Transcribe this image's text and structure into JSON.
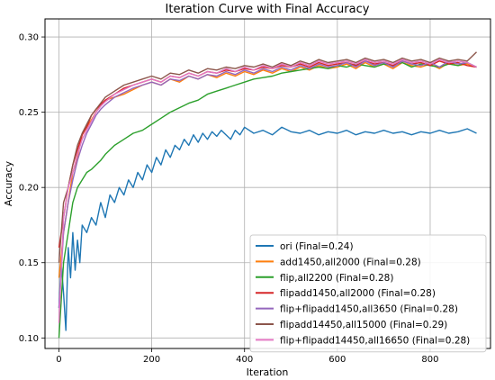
{
  "chart_data": {
    "type": "line",
    "title": "Iteration Curve with Final Accuracy",
    "xlabel": "Iteration",
    "ylabel": "Accuracy",
    "xlim": [
      -30,
      930
    ],
    "ylim": [
      0.093,
      0.312
    ],
    "xticks": [
      0,
      200,
      400,
      600,
      800
    ],
    "yticks": [
      0.1,
      0.15,
      0.2,
      0.25,
      0.3
    ],
    "ytick_labels": [
      "0.10",
      "0.15",
      "0.20",
      "0.25",
      "0.30"
    ],
    "grid": true,
    "legend_position": "lower-right",
    "series": [
      {
        "name": "ori (Final=0.24)",
        "color": "#1f77b4",
        "x": [
          0,
          5,
          10,
          15,
          20,
          25,
          30,
          35,
          40,
          45,
          50,
          60,
          70,
          80,
          90,
          100,
          110,
          120,
          130,
          140,
          150,
          160,
          170,
          180,
          190,
          200,
          210,
          220,
          230,
          240,
          250,
          260,
          270,
          280,
          290,
          300,
          310,
          320,
          330,
          340,
          350,
          360,
          370,
          380,
          390,
          400,
          420,
          440,
          460,
          480,
          500,
          520,
          540,
          560,
          580,
          600,
          620,
          640,
          660,
          680,
          700,
          720,
          740,
          760,
          780,
          800,
          820,
          840,
          860,
          880,
          900
        ],
        "y": [
          0.12,
          0.15,
          0.13,
          0.105,
          0.16,
          0.14,
          0.17,
          0.145,
          0.165,
          0.15,
          0.175,
          0.17,
          0.18,
          0.175,
          0.19,
          0.18,
          0.195,
          0.19,
          0.2,
          0.195,
          0.205,
          0.2,
          0.21,
          0.205,
          0.215,
          0.21,
          0.22,
          0.215,
          0.225,
          0.22,
          0.228,
          0.225,
          0.232,
          0.228,
          0.235,
          0.23,
          0.236,
          0.232,
          0.237,
          0.234,
          0.238,
          0.235,
          0.232,
          0.238,
          0.235,
          0.24,
          0.236,
          0.238,
          0.235,
          0.24,
          0.237,
          0.236,
          0.238,
          0.235,
          0.237,
          0.236,
          0.238,
          0.235,
          0.237,
          0.236,
          0.238,
          0.236,
          0.237,
          0.235,
          0.237,
          0.236,
          0.238,
          0.236,
          0.237,
          0.239,
          0.236
        ]
      },
      {
        "name": "add1450,all2000 (Final=0.28)",
        "color": "#ff7f0e",
        "x": [
          0,
          10,
          20,
          30,
          40,
          50,
          60,
          70,
          80,
          90,
          100,
          120,
          140,
          160,
          180,
          200,
          220,
          240,
          260,
          280,
          300,
          320,
          340,
          360,
          380,
          400,
          420,
          440,
          460,
          480,
          500,
          520,
          540,
          560,
          580,
          600,
          620,
          640,
          660,
          680,
          700,
          720,
          740,
          760,
          780,
          800,
          820,
          840,
          860,
          880,
          900
        ],
        "y": [
          0.14,
          0.17,
          0.19,
          0.21,
          0.22,
          0.235,
          0.24,
          0.245,
          0.25,
          0.255,
          0.258,
          0.26,
          0.262,
          0.265,
          0.268,
          0.27,
          0.268,
          0.272,
          0.27,
          0.274,
          0.272,
          0.275,
          0.273,
          0.276,
          0.274,
          0.277,
          0.275,
          0.278,
          0.276,
          0.279,
          0.277,
          0.28,
          0.278,
          0.281,
          0.279,
          0.28,
          0.282,
          0.279,
          0.283,
          0.28,
          0.282,
          0.279,
          0.283,
          0.281,
          0.28,
          0.282,
          0.279,
          0.283,
          0.281,
          0.282,
          0.28
        ]
      },
      {
        "name": "flip,all2200 (Final=0.28)",
        "color": "#2ca02c",
        "x": [
          0,
          10,
          20,
          30,
          40,
          50,
          60,
          70,
          80,
          90,
          100,
          120,
          140,
          160,
          180,
          200,
          220,
          240,
          260,
          280,
          300,
          320,
          340,
          360,
          380,
          400,
          420,
          440,
          460,
          480,
          500,
          520,
          540,
          560,
          580,
          600,
          620,
          640,
          660,
          680,
          700,
          720,
          740,
          760,
          780,
          800,
          820,
          840,
          860,
          880,
          900
        ],
        "y": [
          0.1,
          0.15,
          0.17,
          0.19,
          0.2,
          0.205,
          0.21,
          0.212,
          0.215,
          0.218,
          0.222,
          0.228,
          0.232,
          0.236,
          0.238,
          0.242,
          0.246,
          0.25,
          0.253,
          0.256,
          0.258,
          0.262,
          0.264,
          0.266,
          0.268,
          0.27,
          0.272,
          0.273,
          0.274,
          0.276,
          0.277,
          0.278,
          0.279,
          0.28,
          0.279,
          0.281,
          0.28,
          0.282,
          0.281,
          0.28,
          0.282,
          0.281,
          0.283,
          0.28,
          0.282,
          0.281,
          0.28,
          0.282,
          0.281,
          0.283,
          0.28
        ]
      },
      {
        "name": "flipadd1450,all2000 (Final=0.28)",
        "color": "#d62728",
        "x": [
          0,
          10,
          20,
          30,
          40,
          50,
          60,
          70,
          80,
          90,
          100,
          120,
          140,
          160,
          180,
          200,
          220,
          240,
          260,
          280,
          300,
          320,
          340,
          360,
          380,
          400,
          420,
          440,
          460,
          480,
          500,
          520,
          540,
          560,
          580,
          600,
          620,
          640,
          660,
          680,
          700,
          720,
          740,
          760,
          780,
          800,
          820,
          840,
          860,
          880,
          900
        ],
        "y": [
          0.16,
          0.18,
          0.2,
          0.215,
          0.225,
          0.235,
          0.24,
          0.248,
          0.252,
          0.255,
          0.258,
          0.262,
          0.266,
          0.268,
          0.27,
          0.272,
          0.27,
          0.274,
          0.273,
          0.276,
          0.274,
          0.277,
          0.276,
          0.278,
          0.277,
          0.279,
          0.278,
          0.28,
          0.279,
          0.281,
          0.28,
          0.282,
          0.28,
          0.283,
          0.281,
          0.282,
          0.283,
          0.281,
          0.284,
          0.282,
          0.283,
          0.281,
          0.284,
          0.282,
          0.283,
          0.281,
          0.284,
          0.282,
          0.283,
          0.281,
          0.28
        ]
      },
      {
        "name": "flip+flipadd1450,all3650 (Final=0.28)",
        "color": "#9467bd",
        "x": [
          0,
          10,
          20,
          30,
          40,
          50,
          60,
          70,
          80,
          90,
          100,
          120,
          140,
          160,
          180,
          200,
          220,
          240,
          260,
          280,
          300,
          320,
          340,
          360,
          380,
          400,
          420,
          440,
          460,
          480,
          500,
          520,
          540,
          560,
          580,
          600,
          620,
          640,
          660,
          680,
          700,
          720,
          740,
          760,
          780,
          800,
          820,
          840,
          860,
          880,
          900
        ],
        "y": [
          0.12,
          0.17,
          0.19,
          0.205,
          0.218,
          0.228,
          0.236,
          0.242,
          0.248,
          0.252,
          0.255,
          0.26,
          0.263,
          0.266,
          0.268,
          0.27,
          0.268,
          0.272,
          0.271,
          0.274,
          0.272,
          0.275,
          0.274,
          0.277,
          0.275,
          0.278,
          0.276,
          0.279,
          0.277,
          0.28,
          0.278,
          0.281,
          0.279,
          0.282,
          0.28,
          0.281,
          0.283,
          0.28,
          0.284,
          0.281,
          0.283,
          0.28,
          0.284,
          0.282,
          0.281,
          0.283,
          0.28,
          0.284,
          0.282,
          0.283,
          0.28
        ]
      },
      {
        "name": "flipadd14450,all15000 (Final=0.29)",
        "color": "#8c564b",
        "x": [
          0,
          10,
          20,
          30,
          40,
          50,
          60,
          70,
          80,
          90,
          100,
          120,
          140,
          160,
          180,
          200,
          220,
          240,
          260,
          280,
          300,
          320,
          340,
          360,
          380,
          400,
          420,
          440,
          460,
          480,
          500,
          520,
          540,
          560,
          580,
          600,
          620,
          640,
          660,
          680,
          700,
          720,
          740,
          760,
          780,
          800,
          820,
          840,
          860,
          880,
          900
        ],
        "y": [
          0.15,
          0.19,
          0.2,
          0.215,
          0.228,
          0.236,
          0.242,
          0.248,
          0.252,
          0.256,
          0.26,
          0.264,
          0.268,
          0.27,
          0.272,
          0.274,
          0.272,
          0.276,
          0.275,
          0.278,
          0.276,
          0.279,
          0.278,
          0.28,
          0.279,
          0.281,
          0.28,
          0.282,
          0.28,
          0.283,
          0.281,
          0.284,
          0.282,
          0.285,
          0.283,
          0.284,
          0.285,
          0.283,
          0.286,
          0.284,
          0.285,
          0.283,
          0.286,
          0.284,
          0.285,
          0.283,
          0.286,
          0.284,
          0.285,
          0.284,
          0.29
        ]
      },
      {
        "name": "flip+flipadd14450,all16650 (Final=0.28)",
        "color": "#e377c2",
        "x": [
          0,
          10,
          20,
          30,
          40,
          50,
          60,
          70,
          80,
          90,
          100,
          120,
          140,
          160,
          180,
          200,
          220,
          240,
          260,
          280,
          300,
          320,
          340,
          360,
          380,
          400,
          420,
          440,
          460,
          480,
          500,
          520,
          540,
          560,
          580,
          600,
          620,
          640,
          660,
          680,
          700,
          720,
          740,
          760,
          780,
          800,
          820,
          840,
          860,
          880,
          900
        ],
        "y": [
          0.11,
          0.18,
          0.2,
          0.21,
          0.222,
          0.232,
          0.238,
          0.244,
          0.25,
          0.254,
          0.257,
          0.262,
          0.265,
          0.268,
          0.27,
          0.272,
          0.27,
          0.274,
          0.273,
          0.276,
          0.274,
          0.277,
          0.276,
          0.279,
          0.277,
          0.28,
          0.278,
          0.281,
          0.279,
          0.282,
          0.28,
          0.283,
          0.281,
          0.284,
          0.282,
          0.283,
          0.284,
          0.282,
          0.285,
          0.283,
          0.284,
          0.282,
          0.285,
          0.283,
          0.284,
          0.282,
          0.285,
          0.283,
          0.284,
          0.283,
          0.28
        ]
      }
    ]
  }
}
